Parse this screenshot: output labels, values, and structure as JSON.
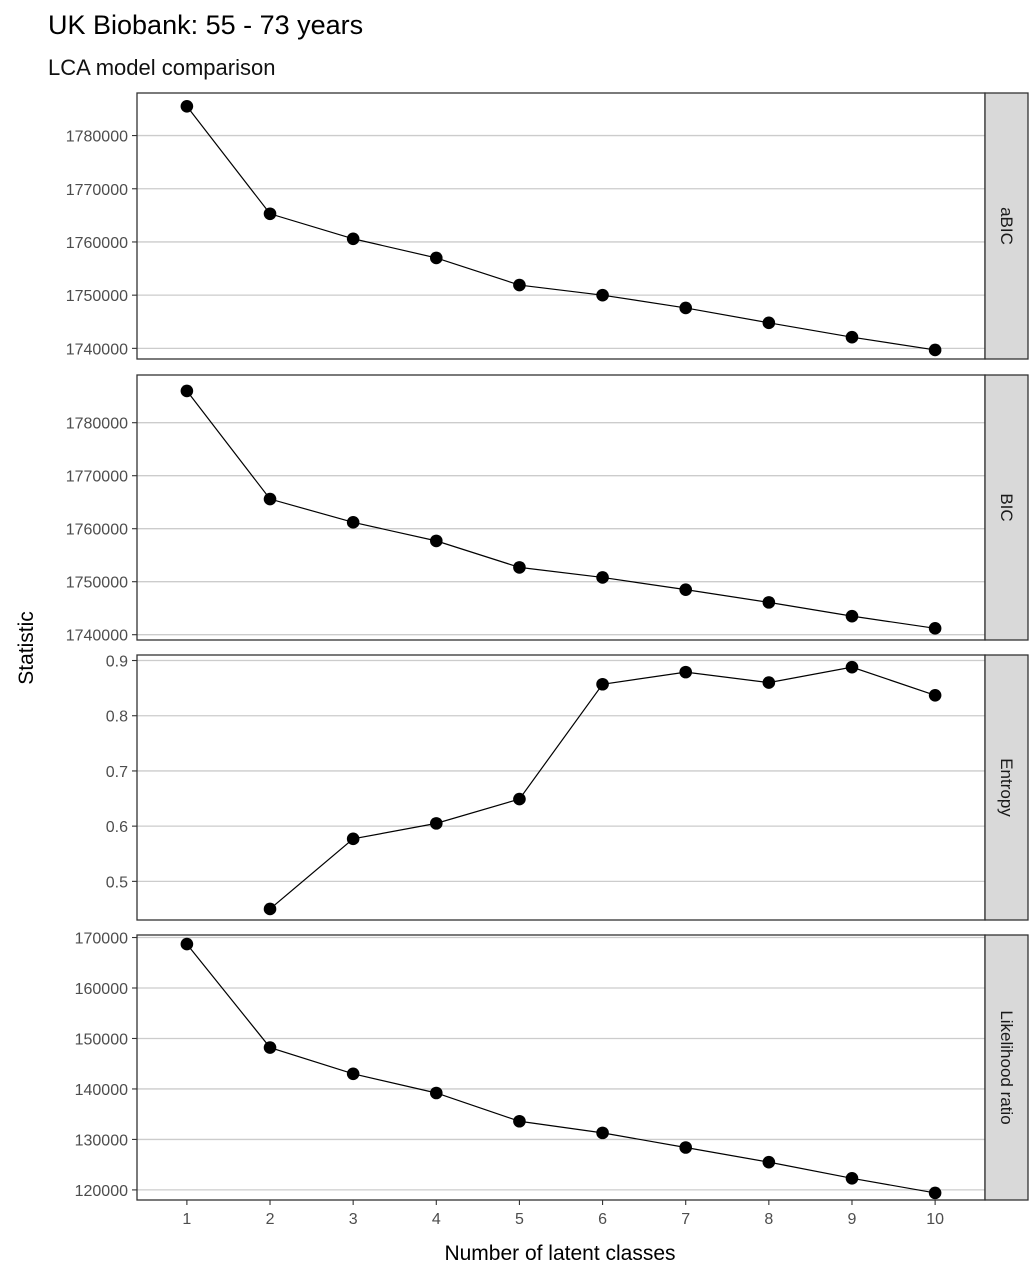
{
  "chart_data": {
    "type": "line",
    "title": "UK Biobank: 55 - 73 years",
    "subtitle": "LCA model comparison",
    "xlabel": "Number of latent classes",
    "ylabel": "Statistic",
    "x": [
      1,
      2,
      3,
      4,
      5,
      6,
      7,
      8,
      9,
      10
    ],
    "x_ticks": [
      "1",
      "2",
      "3",
      "4",
      "5",
      "6",
      "7",
      "8",
      "9",
      "10"
    ],
    "grid": true,
    "facets": [
      {
        "name": "aBIC",
        "values": [
          1785500,
          1765300,
          1760600,
          1757000,
          1751900,
          1750000,
          1747600,
          1744800,
          1742100,
          1739700
        ],
        "ylim": [
          1738000,
          1788000
        ],
        "yticks": [
          1740000,
          1750000,
          1760000,
          1770000,
          1780000
        ],
        "ytick_labels": [
          "1740000",
          "1750000",
          "1760000",
          "1770000",
          "1780000"
        ]
      },
      {
        "name": "BIC",
        "values": [
          1786000,
          1765600,
          1761200,
          1757700,
          1752700,
          1750800,
          1748500,
          1746100,
          1743500,
          1741200
        ],
        "ylim": [
          1739000,
          1789000
        ],
        "yticks": [
          1740000,
          1750000,
          1760000,
          1770000,
          1780000
        ],
        "ytick_labels": [
          "1740000",
          "1750000",
          "1760000",
          "1770000",
          "1780000"
        ]
      },
      {
        "name": "Entropy",
        "values": [
          null,
          0.45,
          0.577,
          0.605,
          0.649,
          0.857,
          0.879,
          0.86,
          0.888,
          0.837
        ],
        "ylim": [
          0.43,
          0.91
        ],
        "yticks": [
          0.5,
          0.6,
          0.7,
          0.8,
          0.9
        ],
        "ytick_labels": [
          "0.5",
          "0.6",
          "0.7",
          "0.8",
          "0.9"
        ]
      },
      {
        "name": "Likelihood ratio",
        "values": [
          168700,
          148200,
          143000,
          139200,
          133600,
          131300,
          128400,
          125500,
          122300,
          119400
        ],
        "ylim": [
          118000,
          170500
        ],
        "yticks": [
          120000,
          130000,
          140000,
          150000,
          160000,
          170000
        ],
        "ytick_labels": [
          "120000",
          "130000",
          "140000",
          "150000",
          "160000",
          "170000"
        ]
      }
    ]
  }
}
